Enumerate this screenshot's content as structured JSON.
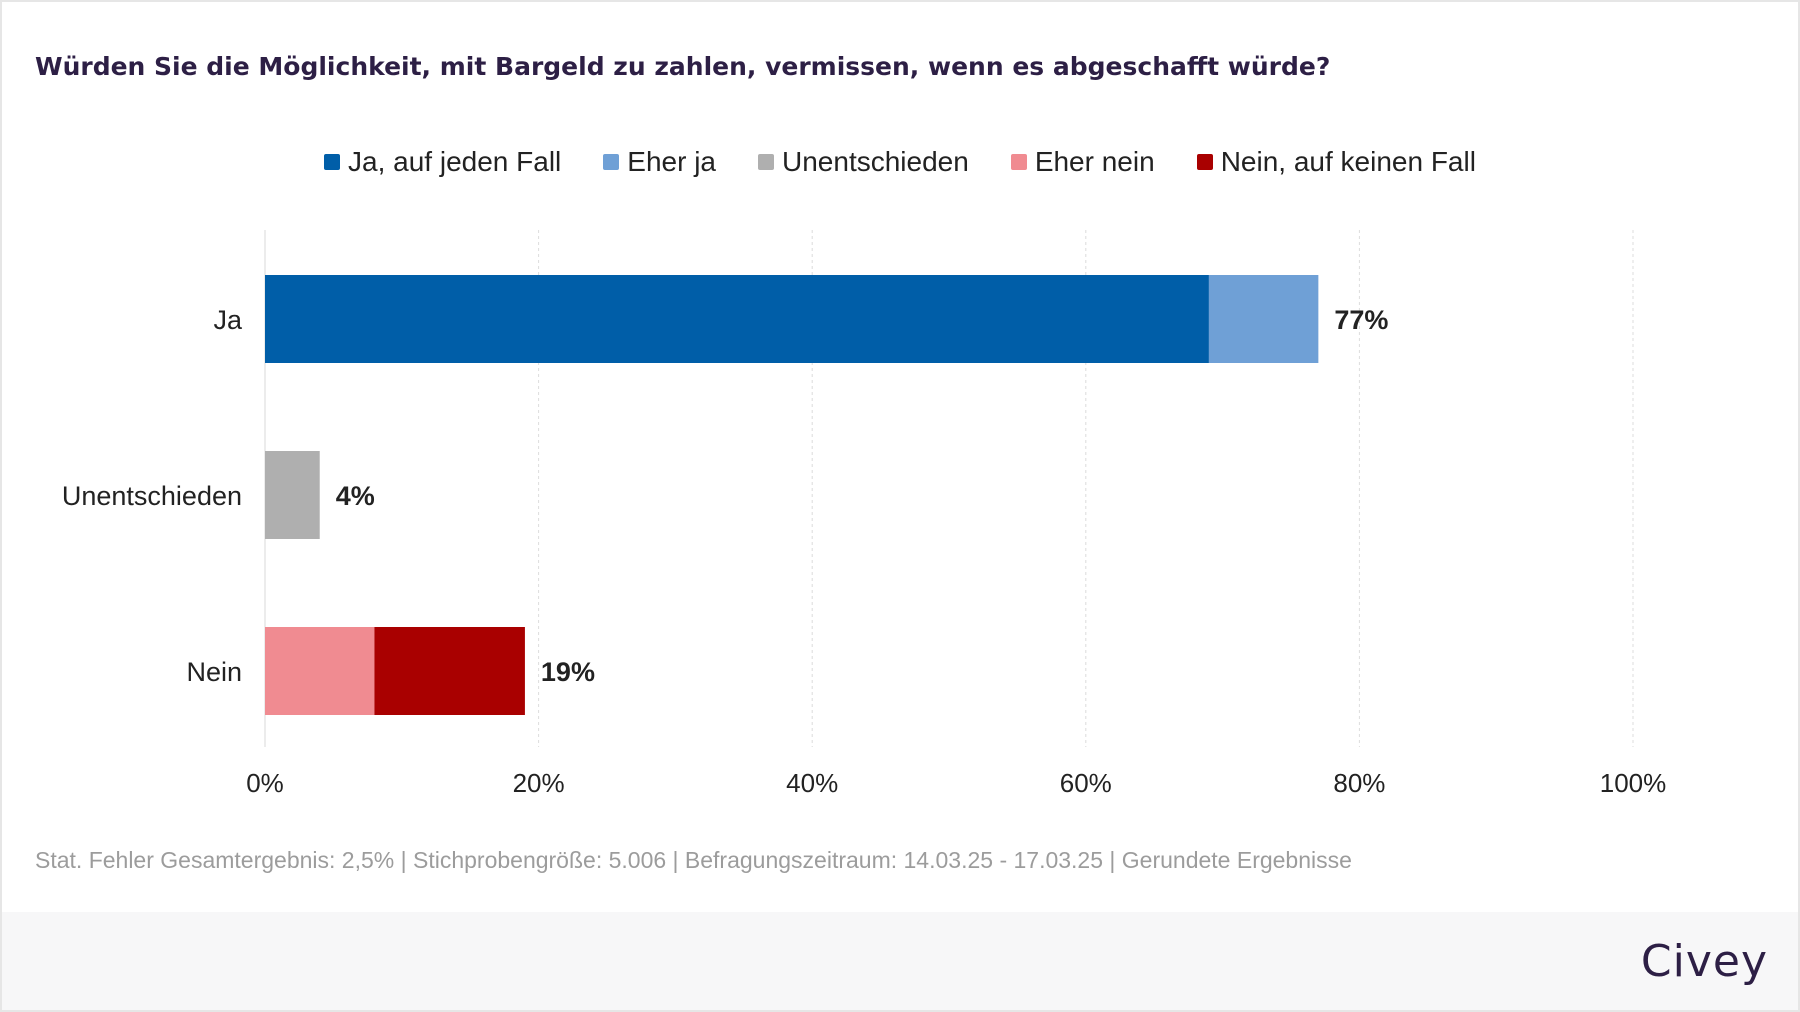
{
  "chart_data": {
    "type": "bar",
    "orientation": "horizontal",
    "stacked": true,
    "title": "Würden Sie die Möglichkeit, mit Bargeld zu zahlen, vermissen, wenn es abgeschafft würde?",
    "categories": [
      "Ja",
      "Unentschieden",
      "Nein"
    ],
    "series": [
      {
        "name": "Ja, auf jeden Fall",
        "color": "#005ea8",
        "values": [
          69,
          0,
          0
        ]
      },
      {
        "name": "Eher ja",
        "color": "#6fa0d6",
        "values": [
          8,
          0,
          0
        ]
      },
      {
        "name": "Unentschieden",
        "color": "#afafaf",
        "values": [
          0,
          4,
          0
        ]
      },
      {
        "name": "Eher nein",
        "color": "#f08b91",
        "values": [
          0,
          0,
          8
        ]
      },
      {
        "name": "Nein, auf keinen Fall",
        "color": "#a90000",
        "values": [
          0,
          0,
          11
        ]
      }
    ],
    "total_labels": [
      "77%",
      "4%",
      "19%"
    ],
    "x_ticks": [
      "0%",
      "20%",
      "40%",
      "60%",
      "80%",
      "100%"
    ],
    "xlim": [
      0,
      100
    ],
    "grid": true,
    "legend_position": "top-center",
    "footnote": "Stat. Fehler Gesamtergebnis: 2,5% | Stichprobengröße: 5.006 | Befragungszeitraum: 14.03.25 - 17.03.25 | Gerundete Ergebnisse",
    "brand": "Civey"
  }
}
